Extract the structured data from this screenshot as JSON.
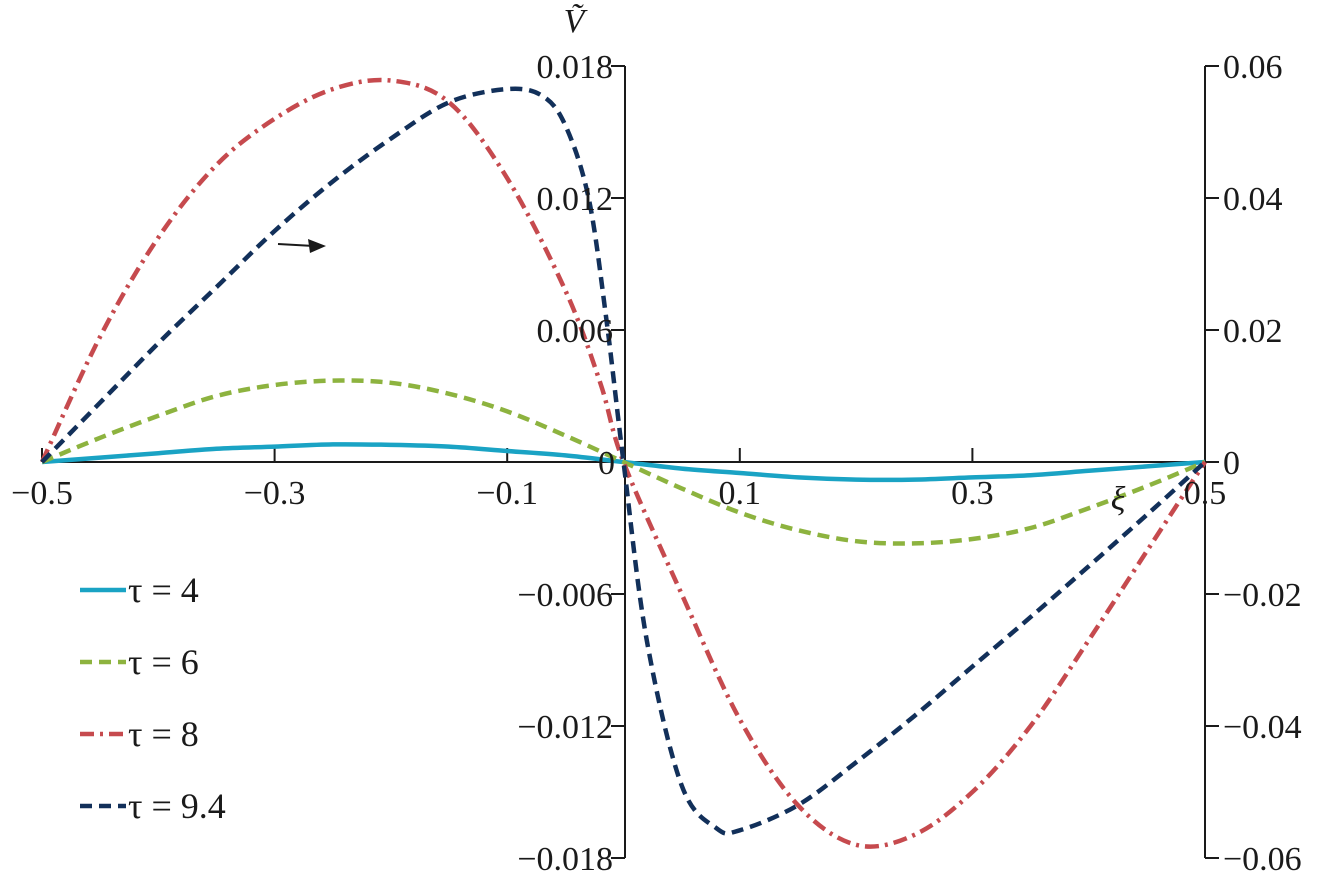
{
  "chart_data": {
    "type": "line",
    "title": "",
    "xlabel": "ξ",
    "ylabel": "Ṽ",
    "xlim": [
      -0.5,
      0.5
    ],
    "ylim_left": [
      -0.018,
      0.018
    ],
    "ylim_right": [
      -0.06,
      0.06
    ],
    "x_ticks": [
      -0.5,
      -0.3,
      -0.1,
      0.1,
      0.3,
      0.5
    ],
    "x_tick_labels": [
      "−0.5",
      "−0.3",
      "−0.1",
      "0.1",
      "0.3",
      "0.5"
    ],
    "y_left_ticks": [
      0.018,
      0.012,
      0.006,
      0,
      -0.006,
      -0.012,
      -0.018
    ],
    "y_left_tick_labels": [
      "0.018",
      "0.012",
      "0.006",
      "0",
      "−0.006",
      "−0.012",
      "−0.018"
    ],
    "y_right_ticks": [
      0.06,
      0.04,
      0.02,
      0,
      -0.02,
      -0.04,
      -0.06
    ],
    "y_right_tick_labels": [
      "0.06",
      "0.04",
      "0.02",
      "0",
      "−0.02",
      "−0.04",
      "−0.06"
    ],
    "legend_position": "left",
    "grid": false,
    "annotation": "arrow pointing right near τ = 9.4 curve indicating right axis",
    "series": [
      {
        "name": "τ = 4",
        "axis": "left",
        "color": "#1aa3c4",
        "dash": "solid",
        "x": [
          -0.5,
          -0.45,
          -0.4,
          -0.35,
          -0.3,
          -0.25,
          -0.2,
          -0.15,
          -0.1,
          -0.05,
          0,
          0.05,
          0.1,
          0.15,
          0.2,
          0.25,
          0.3,
          0.35,
          0.4,
          0.45,
          0.5
        ],
        "y": [
          0,
          0.0002,
          0.0004,
          0.0006,
          0.0007,
          0.0008,
          0.00078,
          0.0007,
          0.0005,
          0.0003,
          0,
          -0.0003,
          -0.0005,
          -0.0007,
          -0.0008,
          -0.0008,
          -0.0007,
          -0.0006,
          -0.0004,
          -0.0002,
          0
        ]
      },
      {
        "name": "τ = 6",
        "axis": "left",
        "color": "#8db33f",
        "dash": "dashed",
        "x": [
          -0.5,
          -0.45,
          -0.4,
          -0.35,
          -0.3,
          -0.25,
          -0.2,
          -0.15,
          -0.1,
          -0.05,
          0,
          0.05,
          0.1,
          0.15,
          0.2,
          0.25,
          0.3,
          0.35,
          0.4,
          0.45,
          0.5
        ],
        "y": [
          0,
          0.0011,
          0.0021,
          0.003,
          0.0035,
          0.0037,
          0.0036,
          0.0031,
          0.0023,
          0.0012,
          0,
          -0.0012,
          -0.0023,
          -0.0031,
          -0.0036,
          -0.0037,
          -0.0035,
          -0.003,
          -0.0021,
          -0.0011,
          0
        ]
      },
      {
        "name": "τ = 8",
        "axis": "right",
        "color": "#c64a4e",
        "dash": "dashdot",
        "x": [
          -0.5,
          -0.45,
          -0.4,
          -0.35,
          -0.3,
          -0.25,
          -0.2,
          -0.15,
          -0.1,
          -0.05,
          -0.02,
          0,
          0.05,
          0.1,
          0.15,
          0.2,
          0.25,
          0.3,
          0.35,
          0.4,
          0.45,
          0.5
        ],
        "y": [
          0,
          0.019,
          0.034,
          0.045,
          0.052,
          0.0565,
          0.0578,
          0.0545,
          0.043,
          0.026,
          0.012,
          0,
          -0.02,
          -0.039,
          -0.052,
          -0.058,
          -0.0565,
          -0.05,
          -0.04,
          -0.027,
          -0.0135,
          0
        ]
      },
      {
        "name": "τ = 9.4",
        "axis": "right",
        "color": "#12305a",
        "dash": "dashed",
        "x": [
          -0.5,
          -0.45,
          -0.4,
          -0.35,
          -0.3,
          -0.25,
          -0.2,
          -0.15,
          -0.1,
          -0.07,
          -0.05,
          -0.03,
          -0.015,
          0,
          0.02,
          0.05,
          0.08,
          0.1,
          0.15,
          0.2,
          0.25,
          0.3,
          0.35,
          0.4,
          0.45,
          0.5
        ],
        "y": [
          0,
          0.009,
          0.018,
          0.0265,
          0.035,
          0.0425,
          0.049,
          0.0545,
          0.0565,
          0.0555,
          0.051,
          0.04,
          0.022,
          0,
          -0.027,
          -0.049,
          -0.0555,
          -0.0558,
          -0.052,
          -0.0455,
          -0.0385,
          -0.031,
          -0.0235,
          -0.0158,
          -0.008,
          0
        ]
      }
    ]
  }
}
